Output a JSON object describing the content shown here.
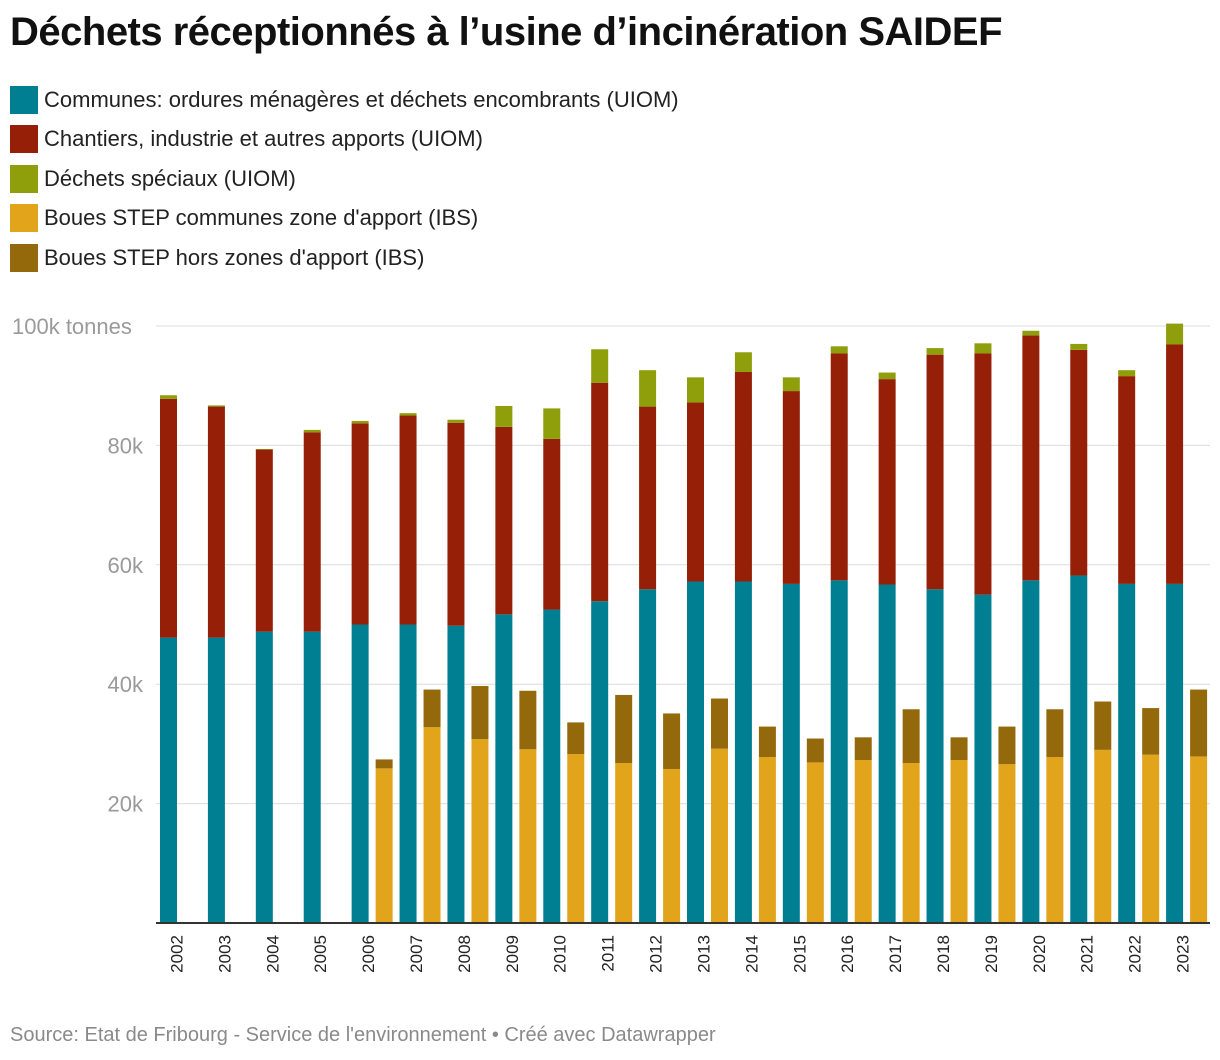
{
  "title": "Déchets réceptionnés à l’usine d’incinération SAIDEF",
  "legend": [
    {
      "label": "Communes: ordures ménagères et déchets encombrants (UIOM)",
      "color": "#007f92"
    },
    {
      "label": "Chantiers, industrie et autres apports (UIOM)",
      "color": "#951f07"
    },
    {
      "label": "Déchets spéciaux (UIOM)",
      "color": "#8f9f0b"
    },
    {
      "label": "Boues STEP communes zone d'apport (IBS)",
      "color": "#e2a41b"
    },
    {
      "label": "Boues STEP hors zones d'apport (IBS)",
      "color": "#93690b"
    }
  ],
  "source": "Source: Etat de Fribourg - Service de l'environnement • Créé avec Datawrapper",
  "chart_data": {
    "type": "bar",
    "layout": "grouped-stacked",
    "ylim": [
      0,
      100000
    ],
    "yticks": [
      {
        "value": 20000,
        "label": "20k"
      },
      {
        "value": 40000,
        "label": "40k"
      },
      {
        "value": 60000,
        "label": "60k"
      },
      {
        "value": 80000,
        "label": "80k"
      },
      {
        "value": 100000,
        "label": "100k tonnes"
      }
    ],
    "categories": [
      "2002",
      "2003",
      "2004",
      "2005",
      "2006",
      "2007",
      "2008",
      "2009",
      "2010",
      "2011",
      "2012",
      "2013",
      "2014",
      "2015",
      "2016",
      "2017",
      "2018",
      "2019",
      "2020",
      "2021",
      "2022",
      "2023"
    ],
    "groups": [
      {
        "name": "UIOM",
        "series": [
          {
            "name": "Communes: ordures ménagères et déchets encombrants (UIOM)",
            "color": "#007f92",
            "values": [
              47800,
              47800,
              48800,
              48800,
              50000,
              50000,
              49800,
              51700,
              52500,
              53900,
              55900,
              57200,
              57200,
              56800,
              57400,
              56700,
              55900,
              55000,
              57400,
              58200,
              56800,
              56800
            ]
          },
          {
            "name": "Chantiers, industrie et autres apports (UIOM)",
            "color": "#951f07",
            "values": [
              40000,
              38700,
              30500,
              33400,
              33700,
              35000,
              34000,
              31400,
              28600,
              36600,
              30600,
              30000,
              35100,
              32300,
              38000,
              34400,
              39300,
              40400,
              41000,
              37800,
              34800,
              40100
            ]
          },
          {
            "name": "Déchets spéciaux (UIOM)",
            "color": "#8f9f0b",
            "values": [
              600,
              200,
              100,
              400,
              400,
              400,
              500,
              3500,
              5100,
              5600,
              6100,
              4200,
              3300,
              2300,
              1200,
              1100,
              1100,
              1700,
              800,
              1000,
              1000,
              3500
            ]
          }
        ]
      },
      {
        "name": "IBS",
        "series": [
          {
            "name": "Boues STEP communes zone d'apport (IBS)",
            "color": "#e2a41b",
            "values": [
              0,
              0,
              0,
              0,
              25900,
              32800,
              30800,
              29100,
              28300,
              26800,
              25800,
              29200,
              27800,
              26900,
              27300,
              26800,
              27300,
              26600,
              27800,
              29000,
              28200,
              27900
            ]
          },
          {
            "name": "Boues STEP hors zones d'apport (IBS)",
            "color": "#93690b",
            "values": [
              0,
              0,
              0,
              0,
              1500,
              6300,
              8900,
              9800,
              5300,
              11400,
              9300,
              8400,
              5100,
              4000,
              3800,
              9000,
              3800,
              6300,
              8000,
              8100,
              7800,
              11200
            ]
          }
        ]
      }
    ]
  }
}
